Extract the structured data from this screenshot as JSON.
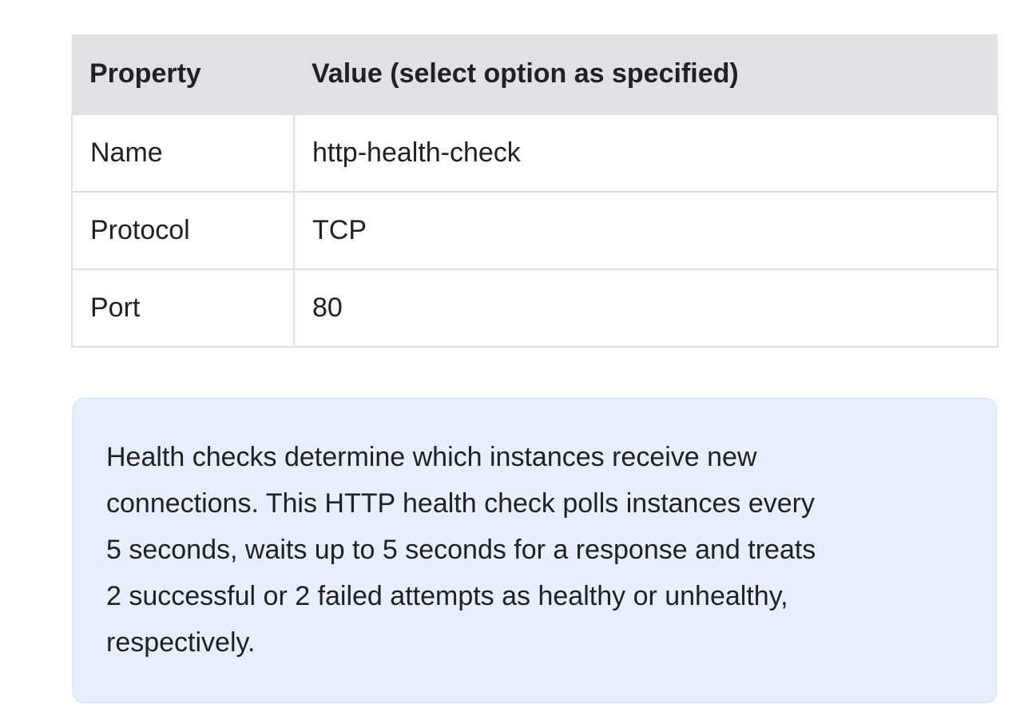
{
  "table": {
    "headers": {
      "property": "Property",
      "value": "Value (select option as specified)"
    },
    "rows": [
      {
        "property": "Name",
        "value": "http-health-check"
      },
      {
        "property": "Protocol",
        "value": "TCP"
      },
      {
        "property": "Port",
        "value": "80"
      }
    ]
  },
  "note": {
    "lines": [
      "Health checks determine which instances receive new",
      "connections. This HTTP health check polls instances every",
      "5 seconds, waits up to 5 seconds for a response and treats",
      "2 successful or 2 failed attempts as healthy or unhealthy,",
      "respectively."
    ]
  },
  "colors": {
    "text": "#202124",
    "table_header_bg": "#e0e1e4",
    "table_border": "#dee0e4",
    "note_bg": "#e8effc",
    "note_border": "#d4ddf6"
  }
}
